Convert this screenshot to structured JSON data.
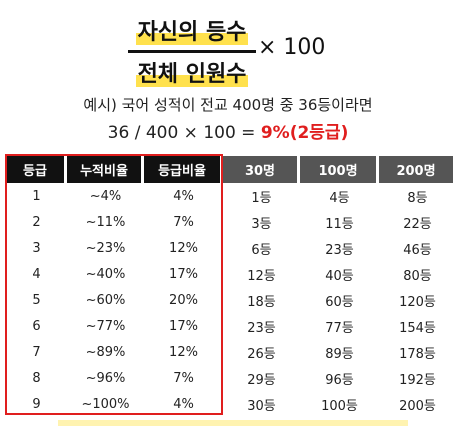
{
  "formula": {
    "numerator": "자신의 등수",
    "denominator": "전체 인원수",
    "multiplier": "× 100"
  },
  "example": {
    "line1": "예시) 국어 성적이 전교 400명 중 36등이라면",
    "line2_calc": "36 / 400 × 100 = ",
    "line2_result": "9%(2등급)",
    "result_color": "#e01e1e"
  },
  "table": {
    "headers": [
      "등급",
      "누적비율",
      "등급비율",
      "30명",
      "100명",
      "200명"
    ],
    "rows": [
      [
        "1",
        "~4%",
        "4%",
        "1등",
        "4등",
        "8등"
      ],
      [
        "2",
        "~11%",
        "7%",
        "3등",
        "11등",
        "22등"
      ],
      [
        "3",
        "~23%",
        "12%",
        "6등",
        "23등",
        "46등"
      ],
      [
        "4",
        "~40%",
        "17%",
        "12등",
        "40등",
        "80등"
      ],
      [
        "5",
        "~60%",
        "20%",
        "18등",
        "60등",
        "120등"
      ],
      [
        "6",
        "~77%",
        "17%",
        "23등",
        "77등",
        "154등"
      ],
      [
        "7",
        "~89%",
        "12%",
        "26등",
        "89등",
        "178등"
      ],
      [
        "8",
        "~96%",
        "7%",
        "29등",
        "96등",
        "192등"
      ],
      [
        "9",
        "~100%",
        "4%",
        "30등",
        "100등",
        "200등"
      ]
    ]
  },
  "colors": {
    "highlight": "#ffe14d",
    "header_dark": "#111111",
    "header_gray": "#555555",
    "box_border": "#e01e1e"
  }
}
